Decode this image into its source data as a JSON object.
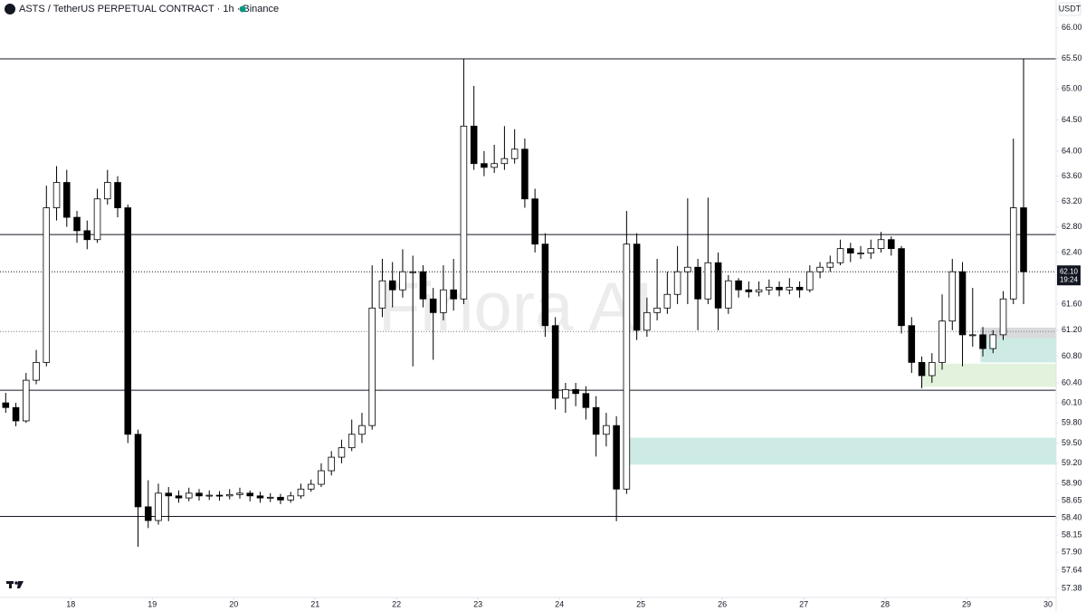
{
  "chart_data": {
    "type": "candlestick",
    "title": "ASTS / TetherUS PERPETUAL CONTRACT · 1h · Binance",
    "currency": "USDT",
    "watermark": "Finora AI",
    "up_color": "#ffffff",
    "down_color": "#000000",
    "border_color": "#000000",
    "log_scale": true,
    "xlim": [
      17.13,
      30.1
    ],
    "xticks": [
      18,
      19,
      20,
      21,
      22,
      23,
      24,
      25,
      26,
      27,
      28,
      29,
      30
    ],
    "ylim": [
      57.25,
      66.46
    ],
    "yticks": [
      {
        "value": 66,
        "label": "66.00"
      },
      {
        "value": 65.5,
        "label": "65.50"
      },
      {
        "value": 65,
        "label": "65.00"
      },
      {
        "value": 64.5,
        "label": "64.50"
      },
      {
        "value": 64,
        "label": "64.00"
      },
      {
        "value": 63.6,
        "label": "63.60"
      },
      {
        "value": 63.2,
        "label": "63.20"
      },
      {
        "value": 62.8,
        "label": "62.80"
      },
      {
        "value": 62.4,
        "label": "62.40"
      },
      {
        "value": 61.6,
        "label": "61.60"
      },
      {
        "value": 61.2,
        "label": "61.20"
      },
      {
        "value": 60.8,
        "label": "60.80"
      },
      {
        "value": 60.4,
        "label": "60.40"
      },
      {
        "value": 60.1,
        "label": "60.10"
      },
      {
        "value": 59.8,
        "label": "59.80"
      },
      {
        "value": 59.5,
        "label": "59.50"
      },
      {
        "value": 59.2,
        "label": "59.20"
      },
      {
        "value": 58.9,
        "label": "58.90"
      },
      {
        "value": 58.65,
        "label": "58.65"
      },
      {
        "value": 58.4,
        "label": "58.40"
      },
      {
        "value": 58.15,
        "label": "58.15"
      },
      {
        "value": 57.9,
        "label": "57.90"
      },
      {
        "value": 57.64,
        "label": "57.64"
      },
      {
        "value": 57.38,
        "label": "57.38"
      }
    ],
    "current_price": {
      "value": 62.1,
      "label": "62.10"
    },
    "countdown": "19:24",
    "levels": [
      65.49,
      62.68,
      60.29,
      58.42
    ],
    "dotted_levels": [
      61.18
    ],
    "zones": [
      {
        "x_start": 24.83,
        "low": 59.18,
        "high": 59.58,
        "color": "#cdebe4"
      },
      {
        "x_start": 28.44,
        "low": 60.34,
        "high": 60.69,
        "color": "#e3f2dd"
      },
      {
        "x_start": 29.17,
        "low": 60.71,
        "high": 61.08,
        "color": "#cdebe4"
      },
      {
        "x_start": 29.17,
        "low": 61.08,
        "high": 61.24,
        "color": "#d9dadc"
      }
    ],
    "x": [
      17.2,
      17.325,
      17.45,
      17.575,
      17.7,
      17.825,
      17.95,
      18.075,
      18.2,
      18.325,
      18.45,
      18.575,
      18.7,
      18.825,
      18.95,
      19.075,
      19.2,
      19.325,
      19.45,
      19.575,
      19.7,
      19.825,
      19.95,
      20.075,
      20.2,
      20.325,
      20.45,
      20.575,
      20.7,
      20.825,
      20.95,
      21.075,
      21.2,
      21.325,
      21.45,
      21.575,
      21.7,
      21.825,
      21.95,
      22.075,
      22.2,
      22.325,
      22.45,
      22.575,
      22.7,
      22.825,
      22.95,
      23.075,
      23.2,
      23.325,
      23.45,
      23.575,
      23.7,
      23.825,
      23.95,
      24.075,
      24.2,
      24.325,
      24.45,
      24.575,
      24.7,
      24.825,
      24.95,
      25.075,
      25.2,
      25.325,
      25.45,
      25.575,
      25.7,
      25.825,
      25.95,
      26.075,
      26.2,
      26.325,
      26.45,
      26.575,
      26.7,
      26.825,
      26.95,
      27.075,
      27.2,
      27.325,
      27.45,
      27.575,
      27.7,
      27.825,
      27.95,
      28.075,
      28.2,
      28.325,
      28.45,
      28.575,
      28.7,
      28.825,
      28.95,
      29.075,
      29.2,
      29.325,
      29.45,
      29.575,
      29.7
    ],
    "open": [
      60.1,
      60.03,
      59.83,
      60.44,
      60.71,
      63.1,
      63.5,
      62.95,
      62.74,
      62.6,
      63.24,
      63.5,
      63.1,
      59.63,
      58.56,
      58.36,
      58.76,
      58.72,
      58.69,
      58.76,
      58.72,
      58.73,
      58.72,
      58.74,
      58.76,
      58.72,
      58.69,
      58.7,
      58.66,
      58.72,
      58.82,
      58.89,
      59.09,
      59.29,
      59.43,
      59.63,
      59.76,
      61.54,
      61.96,
      61.82,
      62.1,
      62.1,
      61.68,
      61.47,
      61.82,
      61.68,
      64.4,
      63.8,
      63.74,
      63.8,
      63.88,
      64.03,
      63.24,
      62.53,
      61.27,
      60.17,
      60.3,
      60.24,
      60.03,
      59.63,
      59.76,
      58.82,
      62.53,
      61.2,
      61.47,
      61.54,
      61.75,
      62.1,
      62.17,
      61.68,
      62.24,
      61.54,
      61.96,
      61.82,
      61.79,
      61.82,
      61.86,
      61.82,
      61.86,
      61.82,
      62.1,
      62.17,
      62.24,
      62.46,
      62.39,
      62.39,
      62.46,
      62.6,
      62.46,
      61.27,
      60.71,
      60.51,
      60.71,
      61.34,
      62.1,
      61.13,
      61.13,
      60.92,
      61.13,
      61.68,
      63.1
    ],
    "high": [
      60.25,
      60.1,
      60.55,
      60.9,
      63.45,
      63.76,
      63.7,
      63.05,
      62.9,
      63.4,
      63.7,
      63.6,
      63.15,
      59.7,
      58.95,
      58.9,
      58.85,
      58.8,
      58.84,
      58.82,
      58.8,
      58.79,
      58.82,
      58.84,
      58.8,
      58.78,
      58.76,
      58.75,
      58.78,
      58.9,
      58.96,
      59.2,
      59.38,
      59.55,
      59.85,
      59.95,
      62.2,
      62.3,
      62.25,
      62.45,
      62.35,
      62.2,
      61.85,
      62.2,
      62.3,
      65.49,
      65.05,
      64.0,
      64.1,
      64.4,
      64.35,
      64.2,
      63.4,
      62.7,
      61.4,
      60.4,
      60.4,
      60.35,
      60.2,
      59.95,
      59.9,
      63.05,
      62.7,
      61.7,
      62.3,
      62.1,
      62.5,
      63.25,
      62.3,
      63.26,
      62.4,
      62.05,
      62.0,
      61.95,
      61.95,
      61.98,
      61.95,
      62.0,
      61.95,
      62.2,
      62.25,
      62.35,
      62.6,
      62.55,
      62.5,
      62.6,
      62.72,
      62.65,
      62.5,
      61.4,
      60.8,
      60.85,
      61.75,
      62.3,
      62.25,
      61.85,
      61.25,
      61.2,
      61.8,
      64.2,
      65.49
    ],
    "low": [
      59.95,
      59.75,
      59.8,
      60.38,
      60.65,
      62.9,
      62.8,
      62.55,
      62.45,
      62.55,
      63.15,
      62.95,
      59.5,
      57.98,
      58.25,
      58.3,
      58.35,
      58.62,
      58.64,
      58.65,
      58.66,
      58.65,
      58.67,
      58.68,
      58.64,
      58.62,
      58.63,
      58.6,
      58.62,
      58.68,
      58.78,
      58.85,
      59.02,
      59.2,
      59.38,
      59.5,
      59.7,
      61.4,
      61.55,
      61.7,
      60.65,
      61.55,
      60.75,
      61.35,
      61.5,
      61.6,
      63.7,
      63.6,
      63.65,
      63.7,
      63.8,
      63.1,
      62.4,
      61.1,
      60.0,
      59.95,
      60.05,
      59.85,
      59.3,
      59.45,
      58.35,
      58.75,
      61.05,
      61.1,
      61.35,
      61.45,
      61.6,
      61.6,
      61.2,
      61.6,
      61.2,
      61.45,
      61.7,
      61.7,
      61.72,
      61.74,
      61.72,
      61.75,
      61.7,
      61.78,
      62.0,
      62.1,
      62.2,
      62.25,
      62.3,
      62.3,
      62.4,
      62.35,
      61.15,
      60.55,
      60.32,
      60.4,
      60.6,
      61.2,
      60.65,
      60.95,
      60.8,
      60.85,
      61.05,
      61.6,
      61.6
    ],
    "close": [
      60.03,
      59.83,
      60.44,
      60.71,
      63.1,
      63.5,
      62.95,
      62.74,
      62.6,
      63.24,
      63.5,
      63.1,
      59.63,
      58.56,
      58.36,
      58.76,
      58.72,
      58.69,
      58.76,
      58.72,
      58.73,
      58.72,
      58.74,
      58.76,
      58.72,
      58.69,
      58.7,
      58.66,
      58.72,
      58.82,
      58.89,
      59.09,
      59.29,
      59.43,
      59.63,
      59.76,
      61.54,
      61.96,
      61.82,
      62.1,
      62.1,
      61.68,
      61.47,
      61.82,
      61.68,
      64.4,
      63.8,
      63.74,
      63.8,
      63.88,
      64.03,
      63.24,
      62.53,
      61.27,
      60.17,
      60.3,
      60.24,
      60.03,
      59.63,
      59.76,
      58.82,
      62.53,
      61.2,
      61.47,
      61.54,
      61.75,
      62.1,
      62.17,
      61.68,
      62.24,
      61.54,
      61.96,
      61.82,
      61.79,
      61.82,
      61.86,
      61.82,
      61.86,
      61.82,
      62.1,
      62.17,
      62.24,
      62.46,
      62.39,
      62.39,
      62.46,
      62.6,
      62.46,
      61.27,
      60.71,
      60.51,
      60.71,
      61.34,
      62.1,
      61.13,
      61.13,
      60.92,
      61.13,
      61.68,
      63.1,
      62.1
    ]
  }
}
